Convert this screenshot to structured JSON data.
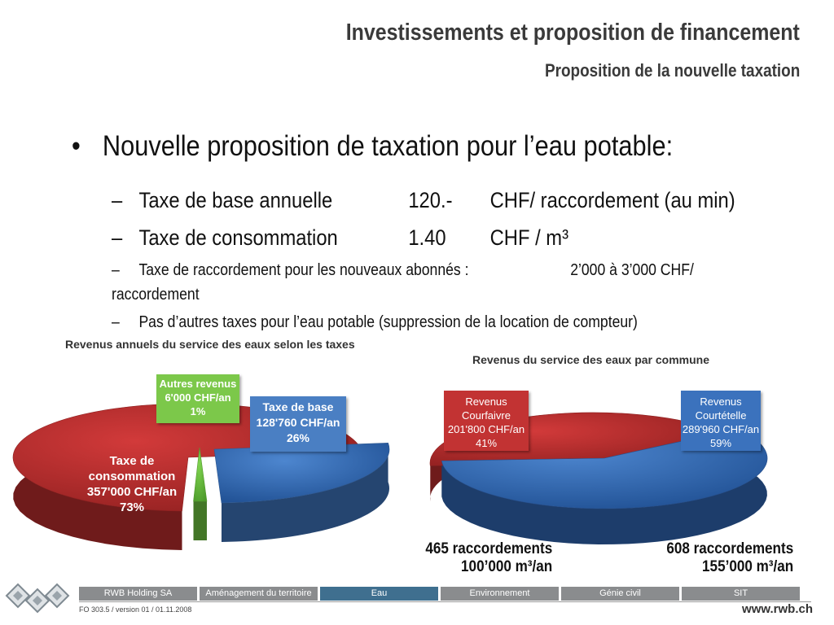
{
  "header": {
    "title": "Investissements et proposition de financement",
    "subtitle": "Proposition de la nouvelle taxation"
  },
  "content": {
    "bullet": "Nouvelle proposition de taxation pour l’eau potable:",
    "lines": [
      {
        "label": "Taxe de base annuelle",
        "value": "120.-",
        "unit": "CHF/ raccordement (au min)"
      },
      {
        "label": "Taxe de consommation",
        "value": "1.40",
        "unit": "CHF / m³"
      }
    ],
    "raccordement_line1": "Taxe de raccordement pour les nouveaux abonnés :",
    "raccordement_value": "2’000 à 3’000 CHF/",
    "raccordement_line2": "raccordement",
    "other_taxes": "Pas d’autres taxes pour l’eau potable (suppression de la location de compteur)"
  },
  "chart_data": [
    {
      "type": "pie",
      "title": "Revenus annuels du service des eaux selon les taxes",
      "slices": [
        {
          "label_lines": [
            "Taxe de",
            "consommation",
            "357'000 CHF/an",
            "73%"
          ],
          "value": 357000,
          "percent": 73,
          "color": "#b32b2b"
        },
        {
          "label_lines": [
            "Taxe de base",
            "128'760 CHF/an",
            "26%"
          ],
          "value": 128760,
          "percent": 26,
          "color": "#3c6fb4"
        },
        {
          "label_lines": [
            "Autres revenus",
            "6'000 CHF/an",
            "1%"
          ],
          "value": 6000,
          "percent": 1,
          "color": "#6cbf3f"
        }
      ]
    },
    {
      "type": "pie",
      "title": "Revenus du service des eaux par commune",
      "slices": [
        {
          "label_lines": [
            "Revenus",
            "Courfaivre",
            "201'800 CHF/an",
            "41%"
          ],
          "value": 201800,
          "percent": 41,
          "color": "#b32b2b"
        },
        {
          "label_lines": [
            "Revenus",
            "Courtételle",
            "289'960 CHF/an",
            "59%"
          ],
          "value": 289960,
          "percent": 59,
          "color": "#2f62ad"
        }
      ],
      "annotations": [
        {
          "line1": "465 raccordements",
          "line2": "100’000 m³/an"
        },
        {
          "line1": "608 raccordements",
          "line2": "155’000 m³/an"
        }
      ]
    }
  ],
  "footer": {
    "nav": [
      "RWB Holding SA",
      "Aménagement du territoire",
      "Eau",
      "Environnement",
      "Génie civil",
      "SIT"
    ],
    "active_index": 2,
    "version": "FO 303.5 / version 01 / 01.11.2008",
    "url": "www.rwb.ch"
  }
}
